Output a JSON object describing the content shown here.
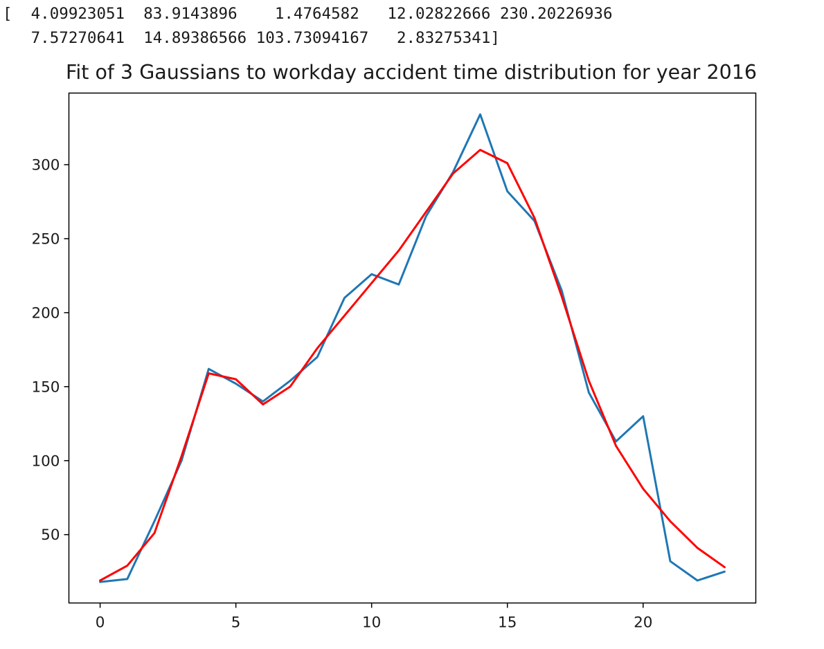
{
  "output": {
    "line1": "[  4.09923051  83.9143896    1.4764582   12.02822666 230.20226936",
    "line2": "   7.57270641  14.89386566 103.73094167   2.83275341]"
  },
  "colors": {
    "data_series": "#1f77b4",
    "fit_series": "#ff0000",
    "axes": "#000000",
    "text": "#1a1a1a"
  },
  "chart_data": {
    "type": "line",
    "title": "Fit of 3 Gaussians to workday accident time distribution for year 2016",
    "xlabel": "",
    "ylabel": "",
    "xlim": [
      -1.15,
      24.15
    ],
    "ylim": [
      3.8,
      348.4
    ],
    "xticks": [
      0,
      5,
      10,
      15,
      20
    ],
    "yticks": [
      50,
      100,
      150,
      200,
      250,
      300
    ],
    "grid": false,
    "x": [
      0,
      1,
      2,
      3,
      4,
      5,
      6,
      7,
      8,
      9,
      10,
      11,
      12,
      13,
      14,
      15,
      16,
      17,
      18,
      19,
      20,
      21,
      22,
      23
    ],
    "series": [
      {
        "color": "#1f77b4",
        "values": [
          18,
          20,
          59,
          100,
          162,
          152,
          140,
          154,
          170,
          210,
          226,
          219,
          265,
          295,
          334,
          282,
          262,
          215,
          146,
          113,
          130,
          32,
          19,
          25
        ]
      },
      {
        "color": "#ff0000",
        "values": [
          19,
          29,
          51,
          103,
          159,
          155,
          138,
          150,
          176,
          198,
          220,
          242,
          268,
          294,
          310,
          301,
          264,
          211,
          154,
          110,
          81,
          59,
          41,
          28
        ]
      }
    ]
  }
}
